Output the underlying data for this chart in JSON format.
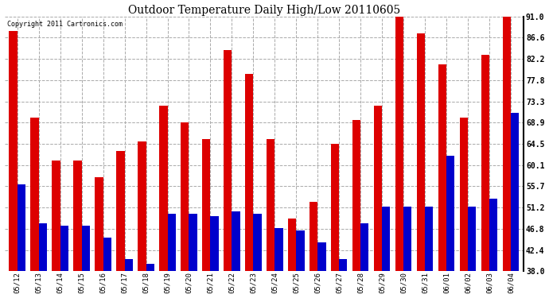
{
  "title": "Outdoor Temperature Daily High/Low 20110605",
  "copyright_text": "Copyright 2011 Cartronics.com",
  "background_color": "#ffffff",
  "plot_bg_color": "#ffffff",
  "grid_color": "#aaaaaa",
  "bar_width": 0.38,
  "high_color": "#dd0000",
  "low_color": "#0000cc",
  "ymin": 38.0,
  "ymax": 91.0,
  "yticks": [
    38.0,
    42.4,
    46.8,
    51.2,
    55.7,
    60.1,
    64.5,
    68.9,
    73.3,
    77.8,
    82.2,
    86.6,
    91.0
  ],
  "dates": [
    "05/12",
    "05/13",
    "05/14",
    "05/15",
    "05/16",
    "05/17",
    "05/18",
    "05/19",
    "05/20",
    "05/21",
    "05/22",
    "05/23",
    "05/24",
    "05/25",
    "05/26",
    "05/27",
    "05/28",
    "05/29",
    "05/30",
    "05/31",
    "06/01",
    "06/02",
    "06/03",
    "06/04"
  ],
  "highs": [
    88.0,
    70.0,
    61.0,
    61.0,
    57.5,
    63.0,
    65.0,
    72.5,
    69.0,
    65.5,
    84.0,
    79.0,
    65.5,
    49.0,
    52.5,
    64.5,
    69.5,
    72.5,
    91.0,
    87.5,
    81.0,
    70.0,
    83.0,
    91.0
  ],
  "lows": [
    56.0,
    48.0,
    47.5,
    47.5,
    45.0,
    40.5,
    39.5,
    50.0,
    50.0,
    49.5,
    50.5,
    50.0,
    47.0,
    46.5,
    44.0,
    40.5,
    48.0,
    51.5,
    51.5,
    51.5,
    62.0,
    51.5,
    53.0,
    71.0
  ]
}
